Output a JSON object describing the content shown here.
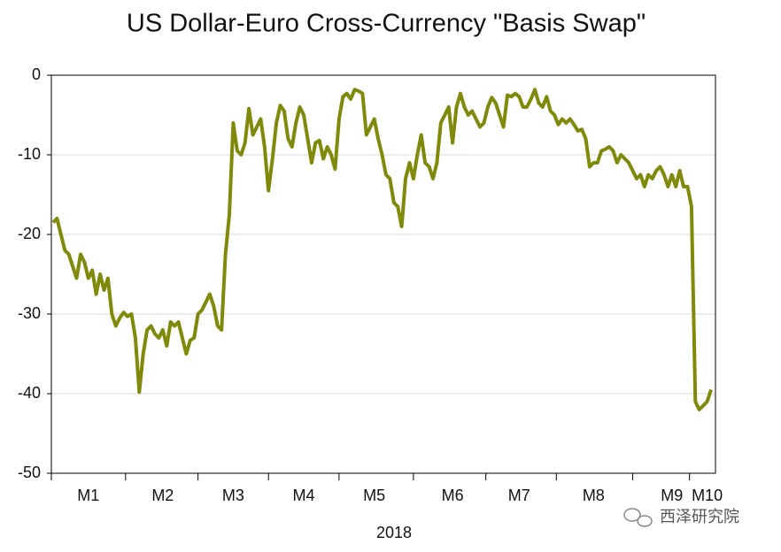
{
  "chart_data": {
    "type": "line",
    "title": "US Dollar-Euro Cross-Currency \"Basis Swap\"",
    "x_label": "2018",
    "watermark": "西泽研究院",
    "color": "#808a0a",
    "grid": true,
    "ylim": [
      -50,
      0
    ],
    "yticks": [
      -50,
      -40,
      -30,
      -20,
      -10,
      0
    ],
    "categories": [
      null,
      null,
      null,
      null,
      null,
      null,
      null,
      null,
      null,
      "M1",
      null,
      null,
      null,
      null,
      null,
      null,
      null,
      null,
      null,
      null,
      null,
      null,
      null,
      null,
      null,
      null,
      null,
      null,
      "M2",
      null,
      null,
      null,
      null,
      null,
      null,
      null,
      null,
      null,
      null,
      null,
      null,
      null,
      null,
      null,
      null,
      null,
      "M3",
      null,
      null,
      null,
      null,
      null,
      null,
      null,
      null,
      null,
      null,
      null,
      null,
      null,
      null,
      null,
      null,
      null,
      "M4",
      null,
      null,
      null,
      null,
      null,
      null,
      null,
      null,
      null,
      null,
      null,
      null,
      null,
      null,
      null,
      null,
      null,
      "M5",
      null,
      null,
      null,
      null,
      null,
      null,
      null,
      null,
      null,
      null,
      null,
      null,
      null,
      null,
      null,
      null,
      null,
      null,
      null,
      "M6",
      null,
      null,
      null,
      null,
      null,
      null,
      null,
      null,
      null,
      null,
      null,
      null,
      null,
      null,
      null,
      null,
      "M7",
      null,
      null,
      null,
      null,
      null,
      null,
      null,
      null,
      null,
      null,
      null,
      null,
      null,
      null,
      null,
      null,
      null,
      null,
      "M8",
      null,
      null,
      null,
      null,
      null,
      null,
      null,
      null,
      null,
      null,
      null,
      null,
      null,
      null,
      null,
      null,
      null,
      null,
      null,
      "M9",
      null,
      null,
      null,
      null,
      null,
      null,
      null,
      null,
      "M10",
      null
    ],
    "values": [
      -18.5,
      -18,
      -20,
      -22,
      -22.5,
      -24,
      -25.5,
      -22.5,
      -23.5,
      -25.5,
      -24.5,
      -27.5,
      -25,
      -27,
      -25.5,
      -30,
      -31.5,
      -30.5,
      -29.8,
      -30.3,
      -30,
      -33,
      -39.8,
      -35,
      -32,
      -31.5,
      -32.5,
      -33,
      -32,
      -34,
      -31,
      -31.5,
      -31,
      -33,
      -35,
      -33.3,
      -33,
      -30,
      -29.5,
      -28.5,
      -27.5,
      -29,
      -31.5,
      -32,
      -22.5,
      -17.5,
      -6,
      -9.5,
      -10,
      -8.5,
      -4.2,
      -7.5,
      -6.5,
      -5.5,
      -9,
      -14.5,
      -10.5,
      -6,
      -3.8,
      -4.5,
      -8,
      -9,
      -6,
      -4,
      -5,
      -8,
      -11,
      -8.5,
      -8.2,
      -10.5,
      -9,
      -10,
      -11.8,
      -5.5,
      -2.7,
      -2.3,
      -3,
      -1.8,
      -2,
      -2.3,
      -7.5,
      -6.5,
      -5.5,
      -8,
      -10,
      -12.5,
      -13,
      -16,
      -16.5,
      -19,
      -13,
      -11,
      -13,
      -10,
      -7.5,
      -11,
      -11.5,
      -13,
      -11,
      -6,
      -5,
      -4,
      -8.5,
      -4,
      -2.3,
      -4,
      -5,
      -4.5,
      -5.5,
      -6.5,
      -6,
      -4,
      -2.8,
      -3.5,
      -5,
      -6.5,
      -2.5,
      -2.7,
      -2.3,
      -2.7,
      -4,
      -4,
      -3,
      -1.8,
      -3.5,
      -4,
      -2.7,
      -4.5,
      -5,
      -6.2,
      -5.5,
      -6,
      -5.5,
      -6.2,
      -7,
      -6.8,
      -8,
      -11.5,
      -11,
      -11,
      -9.5,
      -9.3,
      -9,
      -9.5,
      -11,
      -10,
      -10.5,
      -11,
      -12,
      -13,
      -12.5,
      -14,
      -12.5,
      -13,
      -12,
      -11.5,
      -12.5,
      -14,
      -12.5,
      -14,
      -12,
      -14,
      -14,
      -16.5,
      -41,
      -42,
      -41.5,
      -41,
      -39.5
    ]
  }
}
